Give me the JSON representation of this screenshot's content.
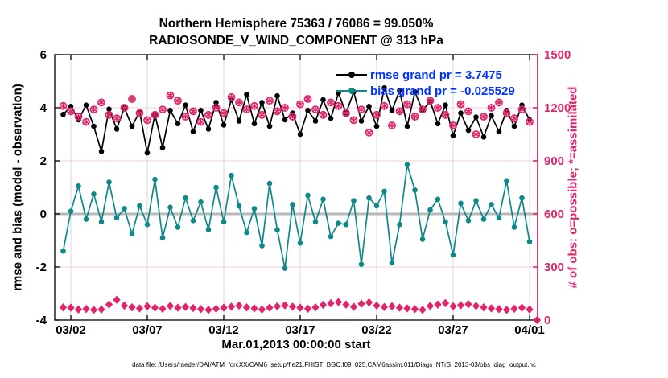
{
  "colors": {
    "crimson": "#e0256b",
    "teal": "#0e8888",
    "legend_blue": "#0033ff",
    "grid_horizontal": "#f5ccd9",
    "grid_vertical": "#d9d9d9",
    "zero_line": "#b9b9b9",
    "rmse_black": "#000000"
  },
  "chart_data": {
    "type": "line",
    "title_line1": "Northern Hemisphere 75363 / 76086 = 99.050%",
    "title_line2": "RADIOSONDE_V_WIND_COMPONENT @ 313 hPa",
    "xlabel": "Mar.01,2013 00:00:00 start",
    "ylabel_left": "rmse and bias (model - observation)",
    "ylabel_right": "# of obs: o=possible; *=assimilated",
    "caption": "data file: /Users/raeder/DAI/ATM_forcXX/CAM6_setup/f.e21.FHIST_BGC.f09_025.CAM6assim.011/Diags_NTrS_2013-03/obs_diag_output.nc",
    "legend": {
      "position": "top-right-inside",
      "entries": [
        "rmse grand pr = 3.7475",
        "bias grand pr = -0.025529"
      ]
    },
    "grid": true,
    "y_left_range": [
      -4,
      6
    ],
    "y_right_range": [
      0,
      1500
    ],
    "y_left_ticks": [
      "6",
      "4",
      "2",
      "0",
      "-2",
      "-4"
    ],
    "y_left_tick_values": [
      6,
      4,
      2,
      0,
      -2,
      -4
    ],
    "y_right_ticks": [
      "1500",
      "1200",
      "900",
      "600",
      "300",
      "0"
    ],
    "y_right_tick_values": [
      1500,
      1200,
      900,
      600,
      300,
      0
    ],
    "x_tick_labels": [
      "03/02",
      "03/07",
      "03/12",
      "03/17",
      "03/22",
      "03/27",
      "04/01"
    ],
    "x_tick_days": [
      1,
      6,
      11,
      16,
      21,
      26,
      31
    ],
    "x_range_days": [
      0,
      31.5
    ],
    "t_start": 0.5,
    "t_step": 0.5,
    "series": [
      {
        "name": "rmse",
        "axis": "left",
        "marker": "filled-circle",
        "color_key": "rmse_black",
        "values": [
          3.75,
          4.05,
          3.55,
          4.1,
          3.3,
          2.35,
          3.95,
          3.2,
          4.0,
          3.3,
          3.85,
          2.3,
          3.75,
          2.5,
          3.9,
          3.4,
          4.1,
          3.1,
          3.9,
          3.2,
          4.2,
          3.35,
          4.3,
          3.5,
          4.5,
          3.4,
          4.2,
          3.3,
          4.45,
          3.55,
          3.8,
          3.0,
          3.9,
          3.5,
          4.3,
          3.6,
          4.55,
          3.8,
          4.6,
          3.5,
          4.05,
          3.3,
          4.75,
          3.9,
          4.65,
          3.3,
          4.6,
          3.9,
          4.25,
          3.4,
          4.1,
          2.95,
          3.8,
          3.15,
          3.65,
          2.9,
          3.7,
          3.1,
          3.9,
          3.3,
          4.1,
          3.55
        ]
      },
      {
        "name": "bias",
        "axis": "left",
        "marker": "filled-circle",
        "color_key": "teal",
        "values": [
          -1.4,
          0.1,
          1.05,
          -0.2,
          0.75,
          -0.3,
          1.2,
          -0.15,
          0.2,
          -0.75,
          0.3,
          -0.4,
          1.3,
          -0.9,
          0.25,
          -0.5,
          0.6,
          -0.25,
          0.45,
          -0.6,
          1.0,
          -0.3,
          1.45,
          0.3,
          -0.7,
          0.2,
          -1.2,
          1.15,
          -0.6,
          -2.05,
          0.35,
          -1.1,
          0.7,
          -0.3,
          0.55,
          -0.85,
          -0.35,
          -0.4,
          0.5,
          -1.9,
          0.6,
          0.3,
          0.85,
          -1.85,
          -0.4,
          1.85,
          0.9,
          -0.95,
          0.15,
          0.55,
          -0.3,
          -1.55,
          0.4,
          -0.25,
          0.5,
          -0.2,
          0.35,
          -0.15,
          1.25,
          -0.5,
          0.6,
          -1.05
        ]
      },
      {
        "name": "obs-count-upper-possible-and-assimilated",
        "axis": "right",
        "marker": "circle-plus-asterisk",
        "color_key": "crimson",
        "values": [
          1210,
          1180,
          1150,
          1120,
          1190,
          1230,
          1160,
          1140,
          1200,
          1250,
          1170,
          1130,
          1160,
          1190,
          1270,
          1240,
          1150,
          1180,
          1120,
          1160,
          1200,
          1170,
          1260,
          1230,
          1190,
          1210,
          1160,
          1240,
          1180,
          1200,
          1150,
          1220,
          1250,
          1190,
          1160,
          1230,
          1210,
          1170,
          1130,
          1190,
          1060,
          1160,
          1210,
          1100,
          1180,
          1220,
          1150,
          1190,
          1240,
          1200,
          1160,
          1100,
          1220,
          1180,
          1050,
          1150,
          1200,
          1230,
          1170,
          1140,
          1190,
          1120
        ]
      },
      {
        "name": "obs-count-lower",
        "axis": "right",
        "marker": "filled-diamond",
        "color_key": "crimson",
        "values": [
          72,
          70,
          60,
          63,
          58,
          60,
          88,
          115,
          82,
          72,
          66,
          78,
          70,
          64,
          80,
          70,
          74,
          68,
          62,
          58,
          64,
          70,
          76,
          82,
          72,
          66,
          60,
          70,
          78,
          84,
          76,
          70,
          64,
          72,
          86,
          95,
          102,
          88,
          75,
          92,
          100,
          82,
          74,
          78,
          70,
          66,
          62,
          58,
          80,
          88,
          96,
          78,
          84,
          90,
          80,
          72,
          66,
          62,
          58,
          64,
          70,
          60
        ],
        "final_point": {
          "t": 31.5,
          "value": 0
        }
      }
    ]
  }
}
